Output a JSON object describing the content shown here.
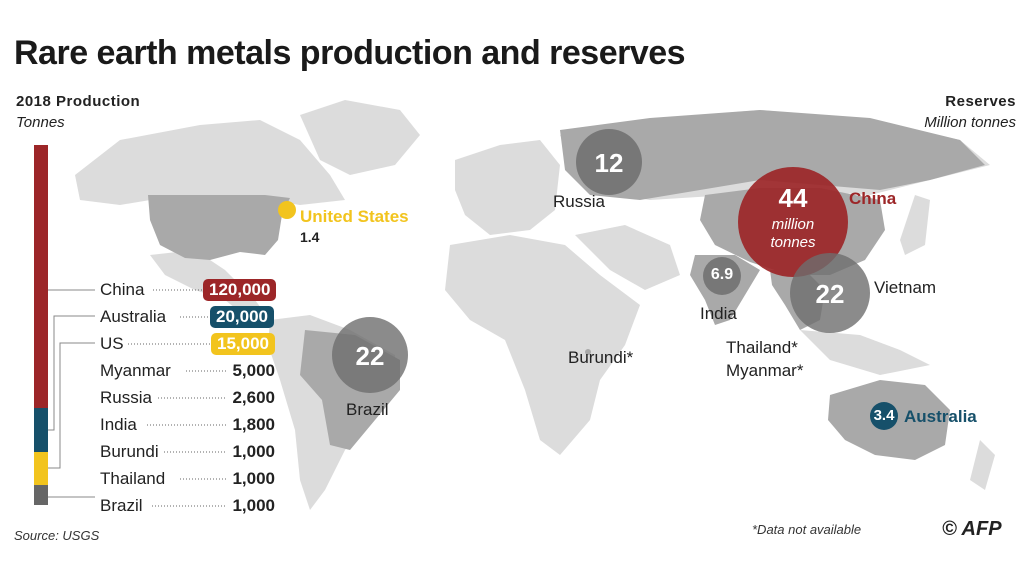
{
  "title": "Rare earth metals production and reserves",
  "production": {
    "heading": "2018 Production",
    "unit": "Tonnes",
    "rows": [
      {
        "country": "China",
        "value": "120,000",
        "highlight": "#9c2628"
      },
      {
        "country": "Australia",
        "value": "20,000",
        "highlight": "#16506a"
      },
      {
        "country": "US",
        "value": "15,000",
        "highlight": "#f2c41e"
      },
      {
        "country": "Myanmar",
        "value": "5,000",
        "highlight": null
      },
      {
        "country": "Russia",
        "value": "2,600",
        "highlight": null
      },
      {
        "country": "India",
        "value": "1,800",
        "highlight": null
      },
      {
        "country": "Burundi",
        "value": "1,000",
        "highlight": null
      },
      {
        "country": "Thailand",
        "value": "1,000",
        "highlight": null
      },
      {
        "country": "Brazil",
        "value": "1,000",
        "highlight": null
      }
    ],
    "bar_colors": {
      "china": "#9c2628",
      "australia": "#16506a",
      "us": "#f2c41e",
      "other": "#666666"
    }
  },
  "reserves": {
    "heading": "Reserves",
    "unit": "Million tonnes",
    "bubbles": [
      {
        "country": "China",
        "value": "44",
        "sub1": "million",
        "sub2": "tonnes",
        "color": "#9c2628"
      },
      {
        "country": "Russia",
        "value": "12",
        "color": "#6e6e6e"
      },
      {
        "country": "Vietnam",
        "value": "22",
        "color": "#6e6e6e"
      },
      {
        "country": "Brazil",
        "value": "22",
        "color": "#6e6e6e"
      },
      {
        "country": "India",
        "value": "6.9",
        "color": "#6e6e6e"
      },
      {
        "country": "Australia",
        "value": "3.4",
        "color": "#16506a"
      },
      {
        "country": "United States",
        "value": "1.4",
        "color": "#f2c41e"
      }
    ],
    "no_data": [
      "Burundi*",
      "Thailand*",
      "Myanmar*"
    ]
  },
  "source": "Source: USGS",
  "footnote": "*Data not available",
  "credit": "© AFP"
}
